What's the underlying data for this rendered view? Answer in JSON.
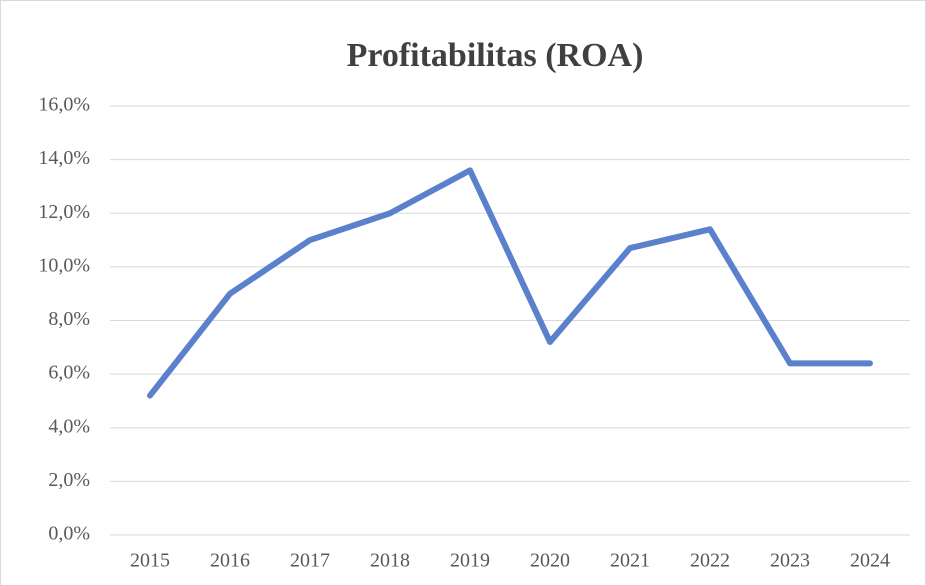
{
  "chart_data": {
    "type": "line",
    "title": "Profitabilitas (ROA)",
    "categories": [
      "2015",
      "2016",
      "2017",
      "2018",
      "2019",
      "2020",
      "2021",
      "2022",
      "2023",
      "2024"
    ],
    "values": [
      5.2,
      9.0,
      11.0,
      12.0,
      13.6,
      7.2,
      10.7,
      11.4,
      6.4,
      6.4
    ],
    "color": "#5b80cc",
    "ylim": [
      0,
      16
    ],
    "yticks": [
      {
        "value": 0,
        "label": "0,0%"
      },
      {
        "value": 2,
        "label": "2,0%"
      },
      {
        "value": 4,
        "label": "4,0%"
      },
      {
        "value": 6,
        "label": "6,0%"
      },
      {
        "value": 8,
        "label": "8,0%"
      },
      {
        "value": 10,
        "label": "10,0%"
      },
      {
        "value": 12,
        "label": "12,0%"
      },
      {
        "value": 14,
        "label": "14,0%"
      },
      {
        "value": 16,
        "label": "16,0%"
      }
    ],
    "grid": true
  }
}
